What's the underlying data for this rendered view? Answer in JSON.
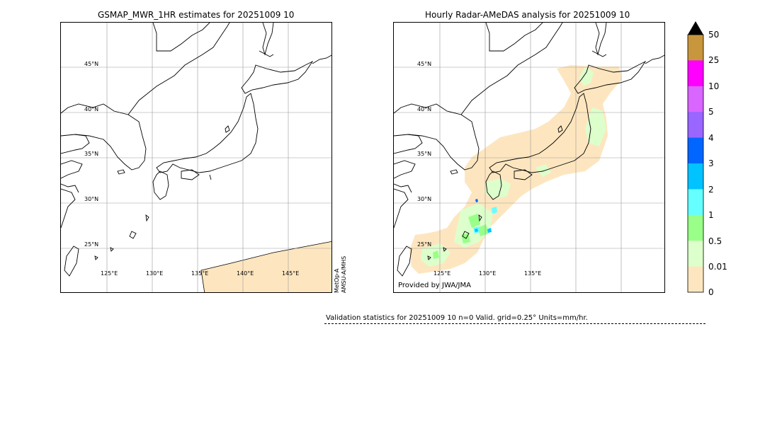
{
  "left_panel": {
    "title": "GSMAP_MWR_1HR estimates for 20251009 10",
    "lat_labels": [
      "45°N",
      "40°N",
      "35°N",
      "30°N",
      "25°N"
    ],
    "lon_labels": [
      "125°E",
      "130°E",
      "135°E",
      "140°E",
      "145°E"
    ],
    "satellite_labels": [
      "MetOp-A",
      "AMSU-A/MHS"
    ]
  },
  "right_panel": {
    "title": "Hourly Radar-AMeDAS analysis for 20251009 10",
    "lat_labels": [
      "45°N",
      "40°N",
      "35°N",
      "30°N",
      "25°N"
    ],
    "lon_labels": [
      "125°E",
      "130°E",
      "135°E"
    ],
    "provided_by": "Provided by JWA/JMA"
  },
  "colorbar": {
    "labels": [
      "50",
      "25",
      "10",
      "5",
      "4",
      "3",
      "2",
      "1",
      "0.5",
      "0.01",
      "0"
    ],
    "colors": [
      "#c8963c",
      "#ff00ff",
      "#d966ff",
      "#9966ff",
      "#0066ff",
      "#00c3ff",
      "#66ffff",
      "#99ff88",
      "#ddffcc",
      "#fde6bf"
    ],
    "extend_color": "#000000"
  },
  "colors": {
    "no_rain_fill": "#fde6bf",
    "light_green": "#ddffcc",
    "green": "#99ff88",
    "cyan": "#66ffff",
    "sky": "#00c3ff",
    "blue": "#0066ff"
  },
  "validation": {
    "text": "Validation statistics for 20251009 10  n=0 Valid. grid=0.25° Units=mm/hr."
  }
}
